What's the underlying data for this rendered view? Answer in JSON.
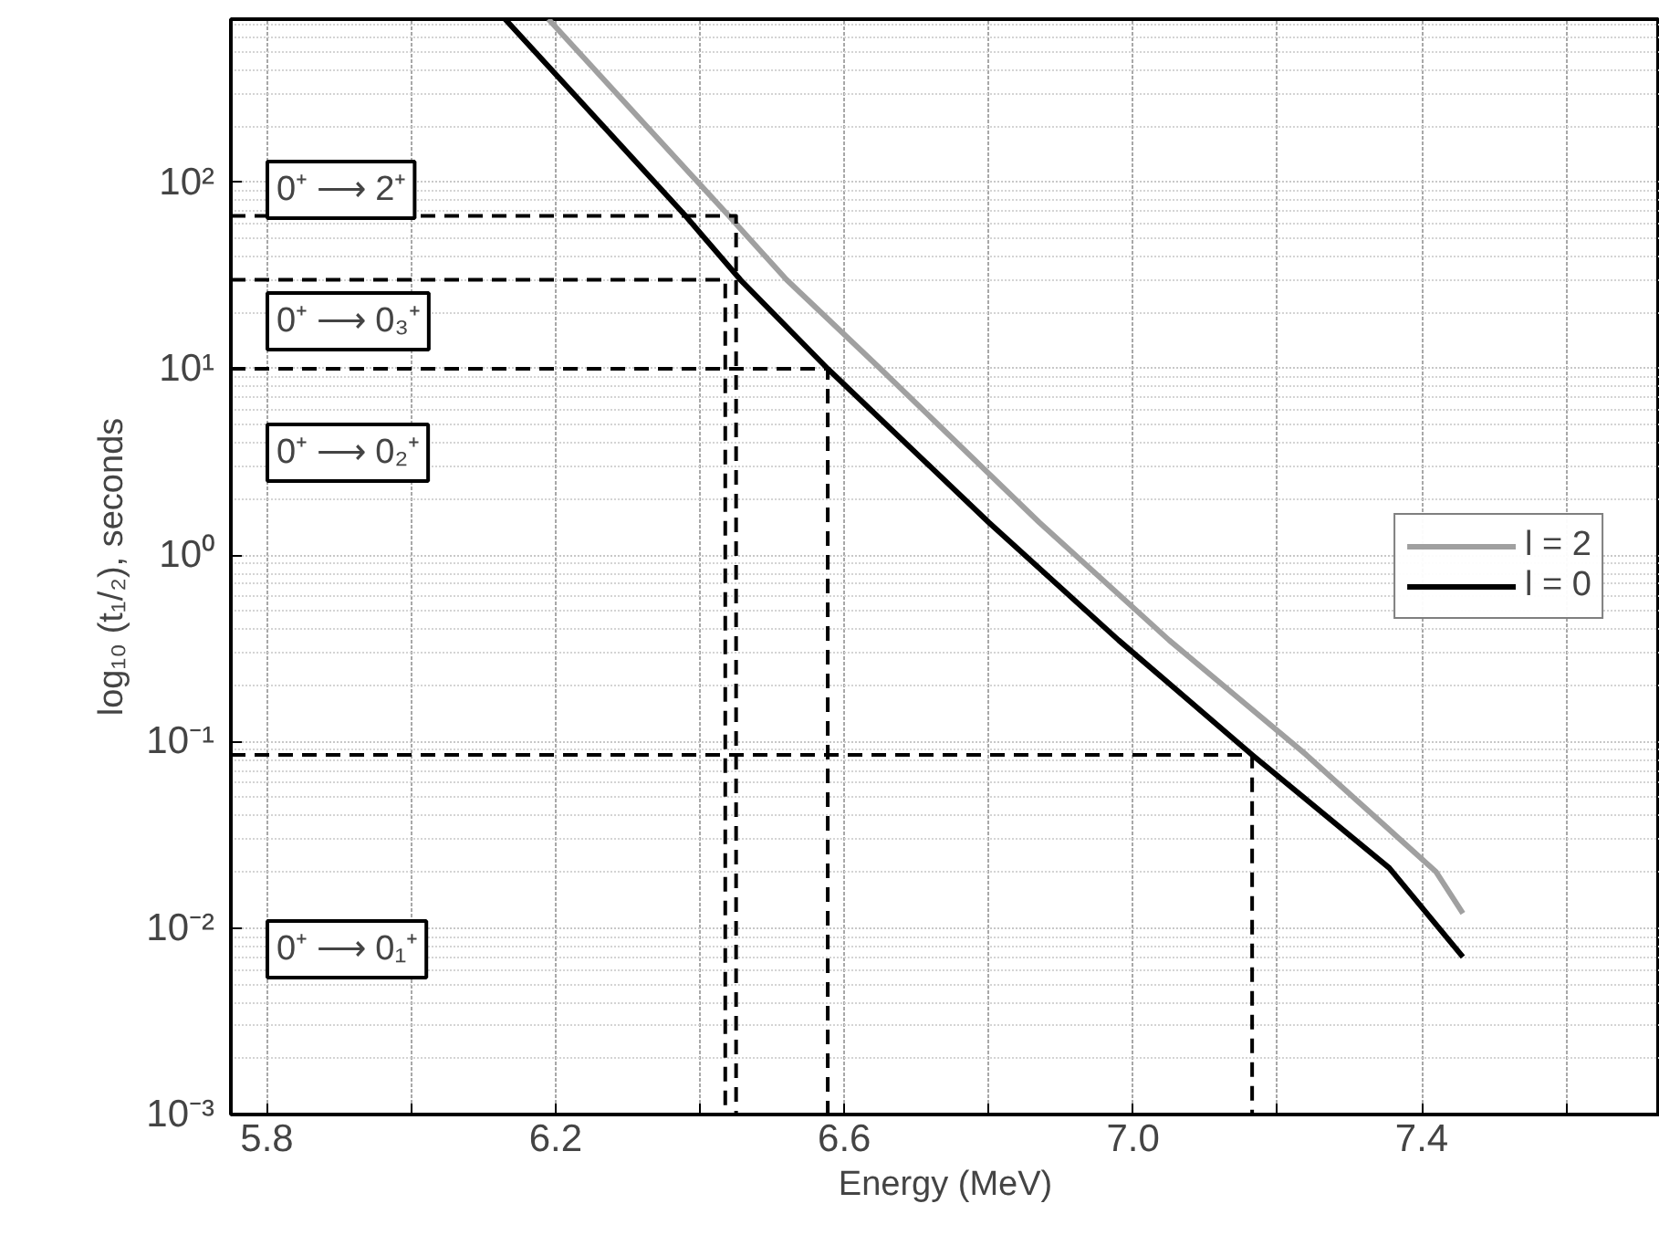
{
  "chart_data": {
    "type": "line",
    "xlabel": "Energy (MeV)",
    "ylabel": "log₁₀ (t₁/₂), seconds",
    "log": "y",
    "grid": true,
    "legend": "right",
    "line_style": "solid",
    "marker": "none",
    "xlim": [
      5.75,
      7.73
    ],
    "ylim": [
      0.001,
      750
    ],
    "xticks": [
      {
        "value": 5.8,
        "label": "5.8"
      },
      {
        "value": 6.0,
        "label": null
      },
      {
        "value": 6.2,
        "label": "6.2"
      },
      {
        "value": 6.4,
        "label": null
      },
      {
        "value": 6.6,
        "label": "6.6"
      },
      {
        "value": 6.8,
        "label": null
      },
      {
        "value": 7.0,
        "label": "7.0"
      },
      {
        "value": 7.2,
        "label": null
      },
      {
        "value": 7.4,
        "label": "7.4"
      },
      {
        "value": 7.6,
        "label": null
      }
    ],
    "yticks": [
      {
        "value": 0.001,
        "label": "10⁻³"
      },
      {
        "value": 0.01,
        "label": "10⁻²"
      },
      {
        "value": 0.1,
        "label": "10⁻¹"
      },
      {
        "value": 1,
        "label": "10⁰"
      },
      {
        "value": 10,
        "label": "10¹"
      },
      {
        "value": 100,
        "label": "10²"
      }
    ],
    "series": [
      {
        "name": "l = 2",
        "color": "#a0a0a0",
        "x": [
          6.19,
          6.44,
          6.52,
          6.65,
          6.87,
          7.05,
          7.24,
          7.42,
          7.457
        ],
        "values": [
          750,
          66,
          30,
          10,
          1.5,
          0.35,
          0.085,
          0.02,
          0.012
        ]
      },
      {
        "name": "l = 0",
        "color": "#000000",
        "x": [
          6.13,
          6.38,
          6.456,
          6.577,
          6.8,
          6.98,
          7.165,
          7.355,
          7.457
        ],
        "values": [
          750,
          66,
          30,
          10,
          1.5,
          0.35,
          0.085,
          0.021,
          0.007
        ]
      },
      {
        "color": "#000000",
        "line_style": "dashed",
        "x": [
          5.75,
          6.45,
          6.45
        ],
        "values": [
          66,
          66,
          0.001
        ]
      },
      {
        "color": "#000000",
        "line_style": "dashed",
        "x": [
          5.75,
          6.435,
          6.435
        ],
        "values": [
          30,
          30,
          0.001
        ]
      },
      {
        "color": "#000000",
        "line_style": "dashed",
        "x": [
          5.75,
          6.577,
          6.577
        ],
        "values": [
          10,
          10,
          0.001
        ]
      },
      {
        "color": "#000000",
        "line_style": "dashed",
        "x": [
          5.75,
          7.165,
          7.165
        ],
        "values": [
          0.085,
          0.085,
          0.001
        ]
      }
    ],
    "annotations": [
      "0⁺ ⟶ 2⁺",
      "0⁺ ⟶ 0₃⁺",
      "0⁺ ⟶ 0₂⁺",
      "0⁺ ⟶ 0₁⁺"
    ]
  }
}
